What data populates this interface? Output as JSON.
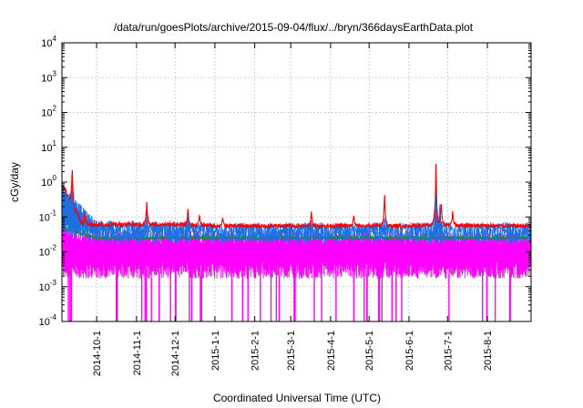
{
  "chart_data": {
    "type": "line",
    "title": "/data/run/goesPlots/archive/2015-09-04/flux/../bryn/366daysEarthData.plot",
    "xlabel": "Coordinated Universal Time (UTC)",
    "ylabel": "cGy/day",
    "y_scale": "log",
    "ylim": [
      0.0001,
      10000
    ],
    "xlim": [
      "2014-09-04",
      "2015-09-04"
    ],
    "grid": true,
    "legend": "none",
    "x_ticks": [
      "2014-10-1",
      "2014-11-1",
      "2014-12-1",
      "2015-1-1",
      "2015-2-1",
      "2015-3-1",
      "2015-4-1",
      "2015-5-1",
      "2015-6-1",
      "2015-7-1",
      "2015-8-1"
    ],
    "y_ticks": [
      {
        "value": 0.0001,
        "base": "10",
        "exp": "-4"
      },
      {
        "value": 0.001,
        "base": "10",
        "exp": "-3"
      },
      {
        "value": 0.01,
        "base": "10",
        "exp": "-2"
      },
      {
        "value": 0.1,
        "base": "10",
        "exp": "-1"
      },
      {
        "value": 1,
        "base": "10",
        "exp": "0"
      },
      {
        "value": 10,
        "base": "10",
        "exp": "1"
      },
      {
        "value": 100,
        "base": "10",
        "exp": "2"
      },
      {
        "value": 1000,
        "base": "10",
        "exp": "3"
      },
      {
        "value": 10000,
        "base": "10",
        "exp": "4"
      }
    ],
    "series": [
      {
        "color": "#ff00ff",
        "description": "noisy band",
        "x": [
          "2014-09-04",
          "2014-09-12",
          "2014-09-20",
          "2014-10-01",
          "2014-11-01",
          "2014-12-01",
          "2015-01-01",
          "2015-02-01",
          "2015-03-01",
          "2015-04-01",
          "2015-05-01",
          "2015-06-01",
          "2015-07-01",
          "2015-08-01",
          "2015-09-04"
        ],
        "upper": [
          0.03,
          0.025,
          0.02,
          0.02,
          0.02,
          0.02,
          0.02,
          0.02,
          0.02,
          0.02,
          0.02,
          0.02,
          0.02,
          0.02,
          0.02
        ],
        "lower": [
          0.003,
          0.003,
          0.003,
          0.003,
          0.003,
          0.003,
          0.003,
          0.003,
          0.003,
          0.003,
          0.003,
          0.003,
          0.003,
          0.003,
          0.003
        ],
        "dropouts_to": 0.0001
      },
      {
        "color": "#00a000",
        "description": "green trace",
        "x": [
          "2014-09-04",
          "2014-10-01",
          "2014-11-01",
          "2014-12-01",
          "2015-01-01",
          "2015-02-01",
          "2015-03-01",
          "2015-04-01",
          "2015-05-01",
          "2015-06-01",
          "2015-07-01",
          "2015-08-01",
          "2015-09-04"
        ],
        "y": [
          0.05,
          0.025,
          0.025,
          0.025,
          0.025,
          0.025,
          0.025,
          0.025,
          0.025,
          0.025,
          0.025,
          0.025,
          0.025
        ]
      },
      {
        "color": "#1e6fe0",
        "description": "blue band",
        "x": [
          "2014-09-04",
          "2014-10-01",
          "2014-11-01",
          "2014-12-01",
          "2015-01-01",
          "2015-02-01",
          "2015-03-01",
          "2015-04-01",
          "2015-05-01",
          "2015-06-01",
          "2015-07-01",
          "2015-08-01",
          "2015-09-04"
        ],
        "upper": [
          0.5,
          0.045,
          0.045,
          0.045,
          0.04,
          0.04,
          0.04,
          0.04,
          0.04,
          0.04,
          0.04,
          0.04,
          0.04
        ],
        "lower": [
          0.05,
          0.03,
          0.03,
          0.03,
          0.03,
          0.03,
          0.03,
          0.03,
          0.03,
          0.03,
          0.03,
          0.03,
          0.03
        ],
        "peaks": [
          {
            "x": "2014-09-12",
            "y": 1.2
          },
          {
            "x": "2014-11-09",
            "y": 0.15
          },
          {
            "x": "2014-12-11",
            "y": 0.1
          },
          {
            "x": "2015-03-17",
            "y": 0.08
          },
          {
            "x": "2015-05-13",
            "y": 0.1
          },
          {
            "x": "2015-06-22",
            "y": 1.0
          },
          {
            "x": "2015-06-25",
            "y": 0.3
          }
        ]
      },
      {
        "color": "#ff0000",
        "description": "red upper envelope",
        "x": [
          "2014-09-04",
          "2014-09-20",
          "2014-10-01",
          "2014-11-01",
          "2014-12-01",
          "2015-01-01",
          "2015-02-01",
          "2015-03-01",
          "2015-04-01",
          "2015-05-01",
          "2015-06-01",
          "2015-07-01",
          "2015-08-01",
          "2015-09-04"
        ],
        "y": [
          0.9,
          0.06,
          0.06,
          0.06,
          0.06,
          0.055,
          0.055,
          0.055,
          0.055,
          0.055,
          0.055,
          0.06,
          0.055,
          0.055
        ],
        "peaks": [
          {
            "x": "2014-09-12",
            "y": 3.0
          },
          {
            "x": "2014-09-22",
            "y": 0.15
          },
          {
            "x": "2014-11-09",
            "y": 0.3
          },
          {
            "x": "2014-12-11",
            "y": 0.18
          },
          {
            "x": "2014-12-20",
            "y": 0.12
          },
          {
            "x": "2015-01-07",
            "y": 0.1
          },
          {
            "x": "2015-03-17",
            "y": 0.15
          },
          {
            "x": "2015-04-19",
            "y": 0.12
          },
          {
            "x": "2015-05-13",
            "y": 0.55
          },
          {
            "x": "2015-06-21",
            "y": 0.2
          },
          {
            "x": "2015-06-22",
            "y": 4.5
          },
          {
            "x": "2015-06-26",
            "y": 0.3
          },
          {
            "x": "2015-07-05",
            "y": 0.15
          }
        ]
      }
    ]
  }
}
